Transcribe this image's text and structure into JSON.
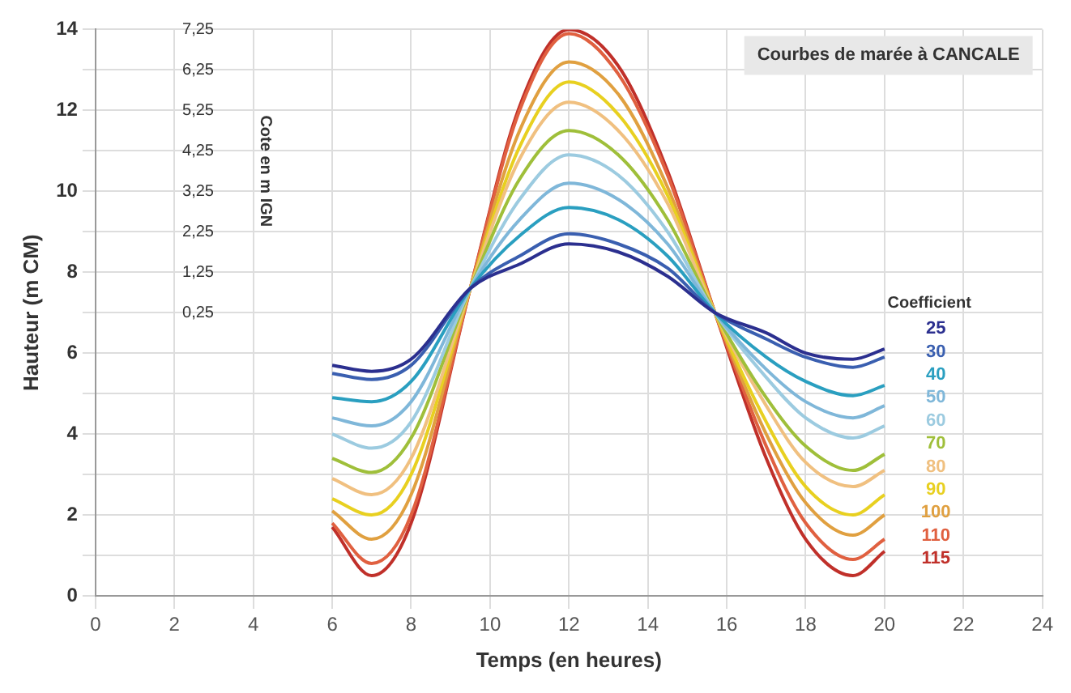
{
  "chart_data": {
    "type": "line",
    "title": "Courbes de marée à CANCALE",
    "xlabel": "Temps (en heures)",
    "ylabel": "Hauteur (m CM)",
    "y2label": "Cote en m IGN",
    "legend_title": "Coefficient",
    "legend": "right",
    "grid": true,
    "marker": "none",
    "line_style": "solid",
    "x": [
      6,
      7,
      8,
      9.5,
      10.75,
      12,
      13.25,
      14.5,
      15.7,
      17,
      18,
      19.2,
      20
    ],
    "xlim": [
      0,
      24
    ],
    "xticks": [
      0,
      2,
      4,
      6,
      8,
      10,
      12,
      14,
      16,
      18,
      20,
      22,
      24
    ],
    "ylim": [
      0,
      14
    ],
    "yticks": [
      0,
      {
        "value": 1,
        "label": null
      },
      2,
      {
        "value": 3,
        "label": null
      },
      4,
      {
        "value": 5,
        "label": null
      },
      6,
      {
        "value": 7,
        "label": null
      },
      8,
      {
        "value": 9,
        "label": null
      },
      10,
      {
        "value": 11,
        "label": null
      },
      12,
      {
        "value": 13,
        "label": null
      },
      14
    ],
    "y2lim": [
      -6.75,
      7.25
    ],
    "y2ticks": [
      {
        "value": 0.25,
        "label": "0,25"
      },
      {
        "value": 1.25,
        "label": "1,25"
      },
      {
        "value": 2.25,
        "label": "2,25"
      },
      {
        "value": 3.25,
        "label": "3,25"
      },
      {
        "value": 4.25,
        "label": "4,25"
      },
      {
        "value": 5.25,
        "label": "5,25"
      },
      {
        "value": 6.25,
        "label": "6,25"
      },
      {
        "value": 7.25,
        "label": "7,25"
      }
    ],
    "series": [
      {
        "name": "25",
        "color": "#2b2f8f",
        "values": [
          5.7,
          5.55,
          5.85,
          7.6,
          8.2,
          8.7,
          8.5,
          7.9,
          7.0,
          6.5,
          6.0,
          5.85,
          6.1
        ]
      },
      {
        "name": "30",
        "color": "#3a5fb0",
        "values": [
          5.5,
          5.35,
          5.7,
          7.6,
          8.4,
          8.95,
          8.7,
          8.1,
          7.0,
          6.35,
          5.9,
          5.65,
          5.9
        ]
      },
      {
        "name": "40",
        "color": "#2a9fc0",
        "values": [
          4.9,
          4.8,
          5.3,
          7.6,
          8.9,
          9.6,
          9.3,
          8.4,
          7.0,
          5.9,
          5.3,
          4.95,
          5.2
        ]
      },
      {
        "name": "50",
        "color": "#7fb7d9",
        "values": [
          4.4,
          4.2,
          4.8,
          7.6,
          9.3,
          10.2,
          9.8,
          8.7,
          7.0,
          5.6,
          4.8,
          4.4,
          4.7
        ]
      },
      {
        "name": "60",
        "color": "#9ccbe0",
        "values": [
          4.0,
          3.65,
          4.3,
          7.6,
          9.8,
          10.9,
          10.4,
          9.0,
          7.0,
          5.4,
          4.4,
          3.9,
          4.2
        ]
      },
      {
        "name": "70",
        "color": "#9fbf3a",
        "values": [
          3.4,
          3.05,
          3.9,
          7.6,
          10.3,
          11.5,
          10.9,
          9.3,
          7.0,
          4.9,
          3.7,
          3.1,
          3.5
        ]
      },
      {
        "name": "80",
        "color": "#f0c080",
        "values": [
          2.9,
          2.5,
          3.4,
          7.6,
          10.8,
          12.2,
          11.5,
          9.7,
          7.0,
          4.7,
          3.3,
          2.7,
          3.1
        ]
      },
      {
        "name": "90",
        "color": "#e8d020",
        "values": [
          2.4,
          2.0,
          3.0,
          7.6,
          11.1,
          12.7,
          11.9,
          9.9,
          7.0,
          4.3,
          2.7,
          2.0,
          2.5
        ]
      },
      {
        "name": "100",
        "color": "#e0a040",
        "values": [
          2.1,
          1.4,
          2.5,
          7.6,
          11.5,
          13.2,
          12.4,
          10.1,
          7.0,
          4.0,
          2.3,
          1.5,
          2.0
        ]
      },
      {
        "name": "110",
        "color": "#e06040",
        "values": [
          1.8,
          0.8,
          2.0,
          7.6,
          12.0,
          13.9,
          12.9,
          10.4,
          7.0,
          3.7,
          1.8,
          0.9,
          1.4
        ]
      },
      {
        "name": "115",
        "color": "#c0302a",
        "values": [
          1.7,
          0.5,
          1.8,
          7.6,
          12.1,
          14.0,
          13.1,
          10.5,
          7.0,
          3.4,
          1.4,
          0.5,
          1.1
        ]
      }
    ]
  }
}
